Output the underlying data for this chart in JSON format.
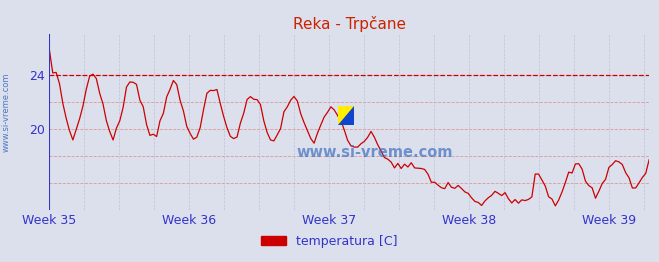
{
  "title": "Reka - Trpčane",
  "xlabel_ticks": [
    "Week 35",
    "Week 36",
    "Week 37",
    "Week 38",
    "Week 39"
  ],
  "week_x_positions": [
    0,
    84,
    168,
    252,
    336
  ],
  "yticks": [
    20,
    24
  ],
  "ylim": [
    14.0,
    27.0
  ],
  "xlim": [
    0,
    360
  ],
  "avg_line_y": 24.0,
  "line_color": "#cc0000",
  "bg_color": "#dce0ec",
  "plot_bg_color": "#dce0ec",
  "grid_color_h": "#dd9999",
  "grid_color_v": "#bbbbcc",
  "axis_color": "#3333cc",
  "title_color": "#cc2200",
  "title_fontsize": 11,
  "tick_color": "#3333cc",
  "tick_fontsize": 9,
  "legend_label": "temperatura [C]",
  "legend_color": "#cc0000",
  "watermark": "www.si-vreme.com",
  "watermark_color": "#3366bb",
  "left_label": "www.si-vreme.com",
  "left_label_color": "#3366bb"
}
